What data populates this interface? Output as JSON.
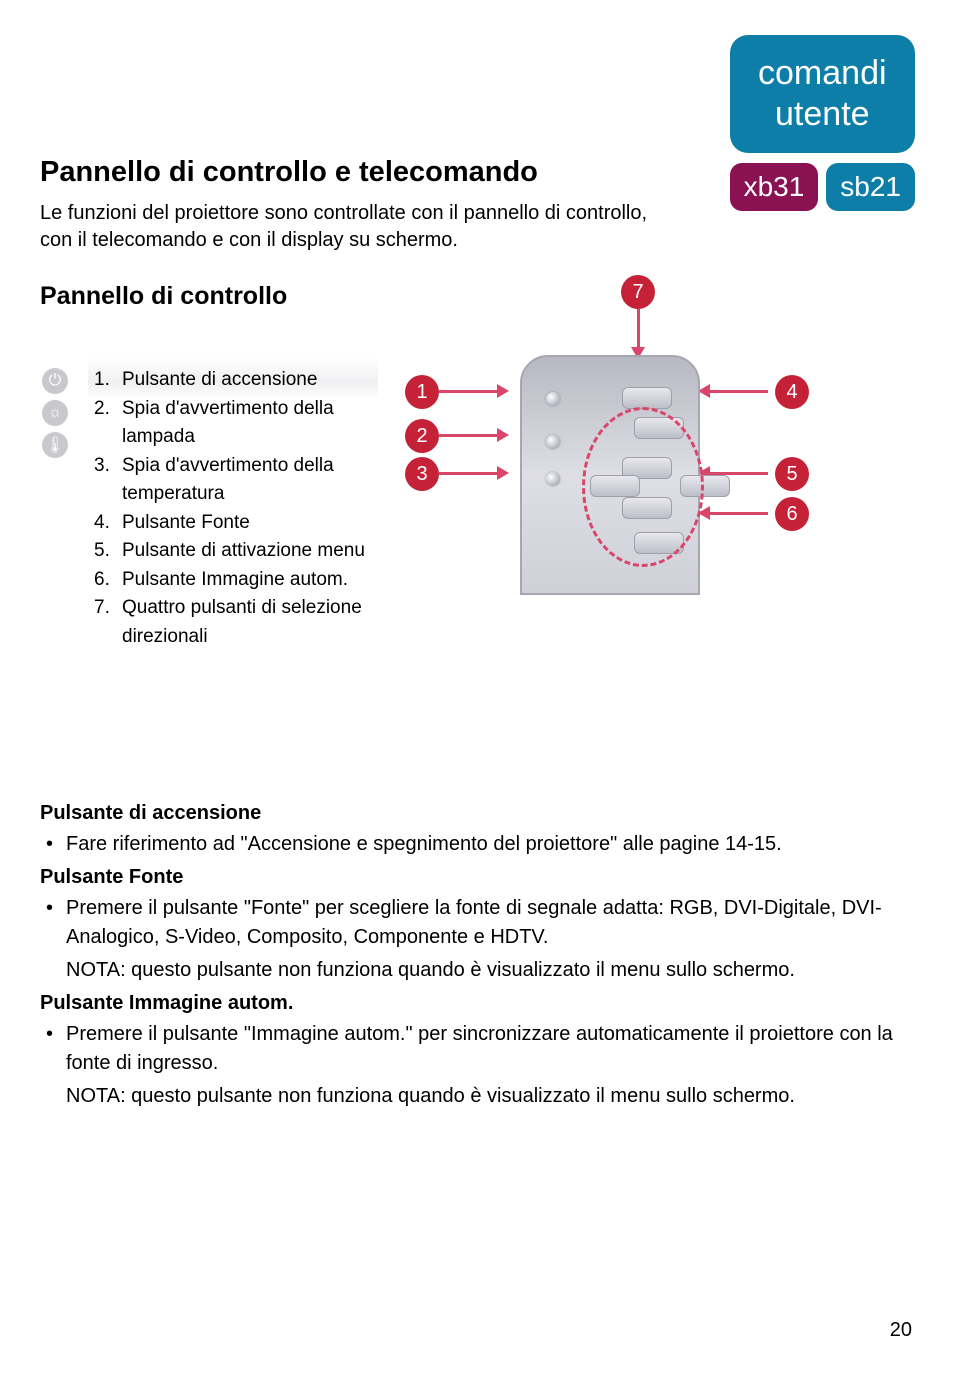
{
  "header": {
    "section_line1": "comandi",
    "section_line2": "utente",
    "model1": "xb31",
    "model2": "sb21"
  },
  "titles": {
    "main": "Pannello di controllo e telecomando",
    "intro": "Le funzioni del proiettore sono controllate con il pannello di controllo, con il telecomando e con il display su schermo.",
    "sub": "Pannello di controllo"
  },
  "legend": [
    {
      "n": "1.",
      "t": "Pulsante di accensione"
    },
    {
      "n": "2.",
      "t": "Spia d'avvertimento della lampada"
    },
    {
      "n": "3.",
      "t": "Spia d'avvertimento della temperatura"
    },
    {
      "n": "4.",
      "t": "Pulsante Fonte"
    },
    {
      "n": "5.",
      "t": "Pulsante di attivazione menu"
    },
    {
      "n": "6.",
      "t": "Pulsante Immagine autom."
    },
    {
      "n": "7.",
      "t": "Quattro pulsanti di selezione direzionali"
    }
  ],
  "callouts": {
    "c1": "1",
    "c2": "2",
    "c3": "3",
    "c4": "4",
    "c5": "5",
    "c6": "6",
    "c7": "7"
  },
  "sections": {
    "s1_title": "Pulsante di accensione",
    "s1_b1": "Fare riferimento ad \"Accensione e spegnimento del proiettore\" alle pagine 14-15.",
    "s2_title": "Pulsante Fonte",
    "s2_b1": "Premere il pulsante \"Fonte\" per scegliere la fonte di segnale adatta: RGB, DVI-Digitale, DVI-Analogico, S-Video, Composito, Componente e HDTV.",
    "s2_note": "NOTA: questo pulsante non funziona quando è visualizzato il menu sullo schermo.",
    "s3_title": "Pulsante Immagine autom.",
    "s3_b1": "Premere il pulsante \"Immagine autom.\" per sincronizzare automaticamente il proiettore con la fonte di ingresso.",
    "s3_note": "NOTA: questo pulsante non funziona quando è visualizzato il menu sullo schermo."
  },
  "page": "20",
  "colors": {
    "blue": "#0d7ea8",
    "magenta": "#8a1152",
    "callout": "#c52238",
    "arrow": "#d9466a"
  }
}
